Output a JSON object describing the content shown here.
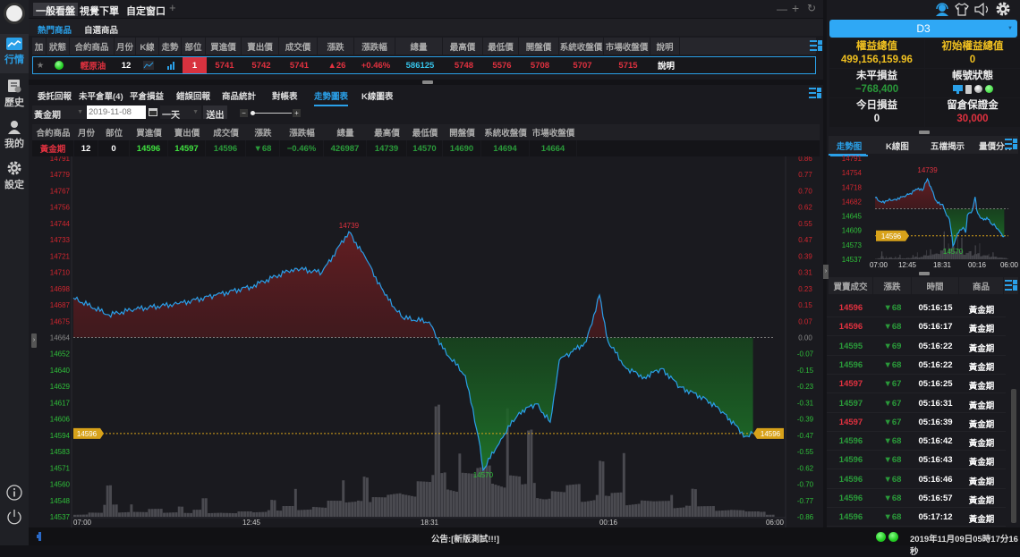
{
  "sidebar": {
    "items": [
      {
        "label": "行情",
        "icon": "chart-line-icon"
      },
      {
        "label": "歷史",
        "icon": "history-icon"
      },
      {
        "label": "我的",
        "icon": "user-icon"
      },
      {
        "label": "設定",
        "icon": "gear-icon"
      }
    ]
  },
  "top_tabs": [
    "一般看盤",
    "視覺下單",
    "自定窗口"
  ],
  "add_tab": "+",
  "window_controls": [
    "—",
    "+",
    "↻"
  ],
  "quote": {
    "tabs": [
      "熱門商品",
      "自選商品"
    ],
    "headers": [
      "加",
      "狀態",
      "合約商品",
      "月份",
      "K線",
      "走勢",
      "部位",
      "買進價",
      "賣出價",
      "成交價",
      "漲跌",
      "漲跌幅",
      "總量",
      "最高價",
      "最低價",
      "開盤價",
      "系統收盤價",
      "市場收盤價",
      "說明"
    ],
    "row": [
      {
        "text": "★",
        "color": "#777"
      },
      {
        "text": "",
        "color": "#3fe03f"
      },
      {
        "text": "輕原油",
        "color": "#e0313f"
      },
      {
        "text": "12",
        "color": "#fff"
      },
      {
        "text": "",
        "color": "#2aa0e8"
      },
      {
        "text": "",
        "color": "#2aa0e8"
      },
      {
        "text": "1",
        "color": "#fff"
      },
      {
        "text": "5741",
        "color": "#e0313f"
      },
      {
        "text": "5742",
        "color": "#e0313f"
      },
      {
        "text": "5741",
        "color": "#e0313f"
      },
      {
        "text": "▲26",
        "color": "#e0313f"
      },
      {
        "text": "+0.46%",
        "color": "#e0313f"
      },
      {
        "text": "586125",
        "color": "#36c2e8"
      },
      {
        "text": "5748",
        "color": "#e0313f"
      },
      {
        "text": "5576",
        "color": "#e0313f"
      },
      {
        "text": "5708",
        "color": "#e0313f"
      },
      {
        "text": "5707",
        "color": "#e0313f"
      },
      {
        "text": "5715",
        "color": "#e0313f"
      },
      {
        "text": "說明",
        "color": "#fff"
      }
    ]
  },
  "lower": {
    "tabs": [
      "委託回報",
      "未平倉單(4)",
      "平倉損益",
      "錯誤回報",
      "商品統計",
      "對帳表",
      "走勢圖表",
      "K線圖表"
    ],
    "active_tab": 6,
    "product": "黃金期",
    "date_placeholder": "2019-11-08",
    "period": "一天",
    "submit": "送出",
    "zoom_minus": "−",
    "zoom_plus": "+",
    "headers": [
      "合約商品",
      "月份",
      "部位",
      "買進價",
      "賣出價",
      "成交價",
      "漲跌",
      "漲跌幅",
      "總量",
      "最高價",
      "最低價",
      "開盤價",
      "系統收盤價",
      "市場收盤價"
    ],
    "row": [
      {
        "text": "黃金期",
        "color": "#e0313f"
      },
      {
        "text": "12",
        "color": "#fff"
      },
      {
        "text": "0",
        "color": "#fff"
      },
      {
        "text": "14596",
        "color": "#3fe03f"
      },
      {
        "text": "14597",
        "color": "#3fe03f"
      },
      {
        "text": "14596",
        "color": "#2a9a3a"
      },
      {
        "text": "▼68",
        "color": "#2a9a3a"
      },
      {
        "text": "−0.46%",
        "color": "#2a9a3a"
      },
      {
        "text": "426987",
        "color": "#2a9a3a"
      },
      {
        "text": "14739",
        "color": "#2a9a3a"
      },
      {
        "text": "14570",
        "color": "#2a9a3a"
      },
      {
        "text": "14690",
        "color": "#2a9a3a"
      },
      {
        "text": "14694",
        "color": "#2a9a3a"
      },
      {
        "text": "14664",
        "color": "#2a9a3a"
      }
    ]
  },
  "chart_data": {
    "type": "line",
    "x_ticks": [
      "07:00",
      "12:45",
      "18:31",
      "00:16",
      "06:00"
    ],
    "y_ticks": [
      "14791",
      "14779",
      "14767",
      "14756",
      "14744",
      "14733",
      "14721",
      "14710",
      "14698",
      "14687",
      "14675",
      "14664",
      "14652",
      "14640",
      "14629",
      "14617",
      "14606",
      "14594",
      "14583",
      "14571",
      "14560",
      "14548",
      "14537"
    ],
    "y2_ticks": [
      "0.86",
      "0.77",
      "0.70",
      "0.62",
      "0.55",
      "0.47",
      "0.39",
      "0.31",
      "0.23",
      "0.15",
      "0.07",
      "0.00",
      "-0.07",
      "-0.15",
      "-0.23",
      "-0.31",
      "-0.39",
      "-0.47",
      "-0.55",
      "-0.62",
      "-0.70",
      "-0.77",
      "-0.86"
    ],
    "ylim": [
      14537,
      14791
    ],
    "reference_price": 14664,
    "last_price": "14596",
    "high_label": "14739",
    "low_label": "14570",
    "series": {
      "time": [
        "07:00",
        "08:10",
        "09:00",
        "10:28",
        "11:40",
        "12:49",
        "14:16",
        "15:09",
        "16:02",
        "16:37",
        "17:13",
        "17:48",
        "18:40",
        "19:07",
        "19:51",
        "20:17",
        "20:26",
        "21:01",
        "21:37",
        "22:11",
        "22:38",
        "22:56",
        "23:22",
        "23:49",
        "00:15",
        "00:32",
        "01:08",
        "01:43",
        "02:18",
        "02:53",
        "03:46",
        "04:21",
        "05:02",
        "05:17"
      ],
      "price": [
        14692,
        14680,
        14684,
        14688,
        14694,
        14700,
        14713,
        14710,
        14739,
        14719,
        14694,
        14678,
        14675,
        14656,
        14637,
        14593,
        14570,
        14592,
        14611,
        14617,
        14604,
        14648,
        14654,
        14661,
        14694,
        14661,
        14642,
        14636,
        14642,
        14629,
        14620,
        14610,
        14594,
        14596
      ]
    },
    "volume_relative": [
      4,
      5,
      14,
      8,
      6,
      9,
      7,
      5,
      8,
      6,
      5,
      6,
      7,
      9,
      12,
      10,
      14,
      18,
      20,
      24,
      22,
      30,
      35,
      40,
      55,
      45,
      50,
      62,
      58,
      48,
      40,
      35,
      30,
      38,
      30,
      26,
      28,
      22,
      20,
      18,
      15,
      14,
      12,
      10,
      9,
      6,
      3
    ]
  },
  "right": {
    "account": "D3",
    "stats": [
      {
        "label": "權益總值",
        "value": "499,156,159.96"
      },
      {
        "label": "初始權益總值",
        "value": "0"
      },
      {
        "label": "未平損益",
        "value": "−768,400"
      },
      {
        "label": "帳號狀態",
        "value": ""
      },
      {
        "label": "今日損益",
        "value": "0"
      },
      {
        "label": "留倉保證金",
        "value": "30,000"
      }
    ],
    "tabs": [
      "走勢图",
      "K線图",
      "五檔揭示",
      "量價分佈"
    ],
    "mini_chart": {
      "y_ticks": [
        "14791",
        "14754",
        "14718",
        "14682",
        "14645",
        "14609",
        "14573",
        "14537"
      ],
      "x_ticks": [
        "07:00",
        "12:45",
        "18:31",
        "00:16",
        "06:00"
      ],
      "high_label": "14739",
      "low_label": "14570",
      "last_price": "14596"
    },
    "trades": {
      "headers": [
        "買賣成交",
        "漲跌",
        "時間",
        "商品"
      ],
      "rows": [
        {
          "price": "14596",
          "side": "buy",
          "change": "▼68",
          "time": "05:16:15",
          "product": "黃金期"
        },
        {
          "price": "14596",
          "side": "buy",
          "change": "▼68",
          "time": "05:16:17",
          "product": "黃金期"
        },
        {
          "price": "14595",
          "side": "sell",
          "change": "▼69",
          "time": "05:16:22",
          "product": "黃金期"
        },
        {
          "price": "14596",
          "side": "sell",
          "change": "▼68",
          "time": "05:16:22",
          "product": "黃金期"
        },
        {
          "price": "14597",
          "side": "buy",
          "change": "▼67",
          "time": "05:16:25",
          "product": "黃金期"
        },
        {
          "price": "14597",
          "side": "sell",
          "change": "▼67",
          "time": "05:16:31",
          "product": "黃金期"
        },
        {
          "price": "14597",
          "side": "buy",
          "change": "▼67",
          "time": "05:16:39",
          "product": "黃金期"
        },
        {
          "price": "14596",
          "side": "sell",
          "change": "▼68",
          "time": "05:16:42",
          "product": "黃金期"
        },
        {
          "price": "14596",
          "side": "sell",
          "change": "▼68",
          "time": "05:16:43",
          "product": "黃金期"
        },
        {
          "price": "14596",
          "side": "sell",
          "change": "▼68",
          "time": "05:16:46",
          "product": "黃金期"
        },
        {
          "price": "14596",
          "side": "sell",
          "change": "▼68",
          "time": "05:16:57",
          "product": "黃金期"
        },
        {
          "price": "14596",
          "side": "sell",
          "change": "▼68",
          "time": "05:17:12",
          "product": "黃金期"
        }
      ]
    }
  },
  "status": {
    "announcement": "公告:[新版測試!!!]",
    "datetime": "2019年11月09日05時17分16秒"
  },
  "colors": {
    "up": "#e0313f",
    "down": "#2a9a3a",
    "accent": "#2aa0e8",
    "gold": "#d8a21a"
  }
}
